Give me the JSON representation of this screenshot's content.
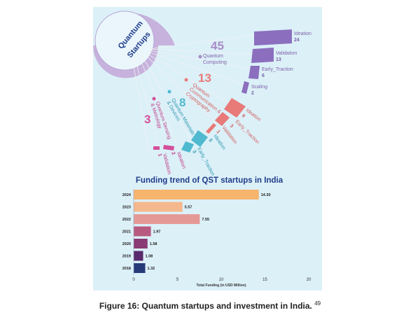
{
  "hub": {
    "line1": "Quantum",
    "line2": "Startups"
  },
  "categories": [
    {
      "count": "45",
      "name_lines": [
        "Quantum",
        "Computing"
      ],
      "color": "#a98bc6",
      "stages": [
        {
          "name": "Ideation",
          "value": "24"
        },
        {
          "name": "Validation",
          "value": "13"
        },
        {
          "name": "Early_Traction",
          "value": "6"
        },
        {
          "name": "Scaling",
          "value": "2"
        }
      ]
    },
    {
      "count": "13",
      "name_lines": [
        "Quantum",
        "Communication &",
        "Cryptography"
      ],
      "color": "#e87a78",
      "stages": [
        {
          "name": "Ideation",
          "value": "9"
        },
        {
          "name": "Early_Traction",
          "value": "3"
        },
        {
          "name": "Validation",
          "value": "1"
        }
      ]
    },
    {
      "count": "8",
      "name_lines": [
        "Quantum Materials",
        "& Devices"
      ],
      "color": "#4fb9cf",
      "stages": [
        {
          "name": "Ideation",
          "value": "5"
        },
        {
          "name": "Early_Traction",
          "value": "3"
        }
      ]
    },
    {
      "count": "3",
      "name_lines": [
        "Quantum Sensing",
        "& Metrology"
      ],
      "color": "#d44f9a",
      "stages": [
        {
          "name": "Ideation",
          "value": "2"
        },
        {
          "name": "Validation",
          "value": "1"
        }
      ]
    }
  ],
  "chart_data": {
    "type": "bar",
    "orientation": "horizontal",
    "title": "Funding trend of QST startups in India",
    "categories": [
      "2024",
      "2023",
      "2022",
      "2021",
      "2020",
      "2019",
      "2018"
    ],
    "values": [
      14.3,
      5.57,
      7.55,
      1.97,
      1.58,
      1.08,
      1.32
    ],
    "value_labels": [
      "14.30",
      "5.57",
      "7.55",
      "1.97",
      "1.58",
      "1.08",
      "1.32"
    ],
    "bar_colors": [
      "#f6b46d",
      "#f5b88c",
      "#e59996",
      "#b85a80",
      "#8a3a74",
      "#5a2a6e",
      "#263a7a"
    ],
    "xlabel": "Total Funding (in USD Million)",
    "ylabel": "",
    "xlim": [
      0,
      20
    ],
    "xticks": [
      "0",
      "5",
      "10",
      "15",
      "20"
    ],
    "grid": false
  },
  "caption": {
    "text": "Figure 16: Quantum startups and investment in India.",
    "ref": "49"
  }
}
